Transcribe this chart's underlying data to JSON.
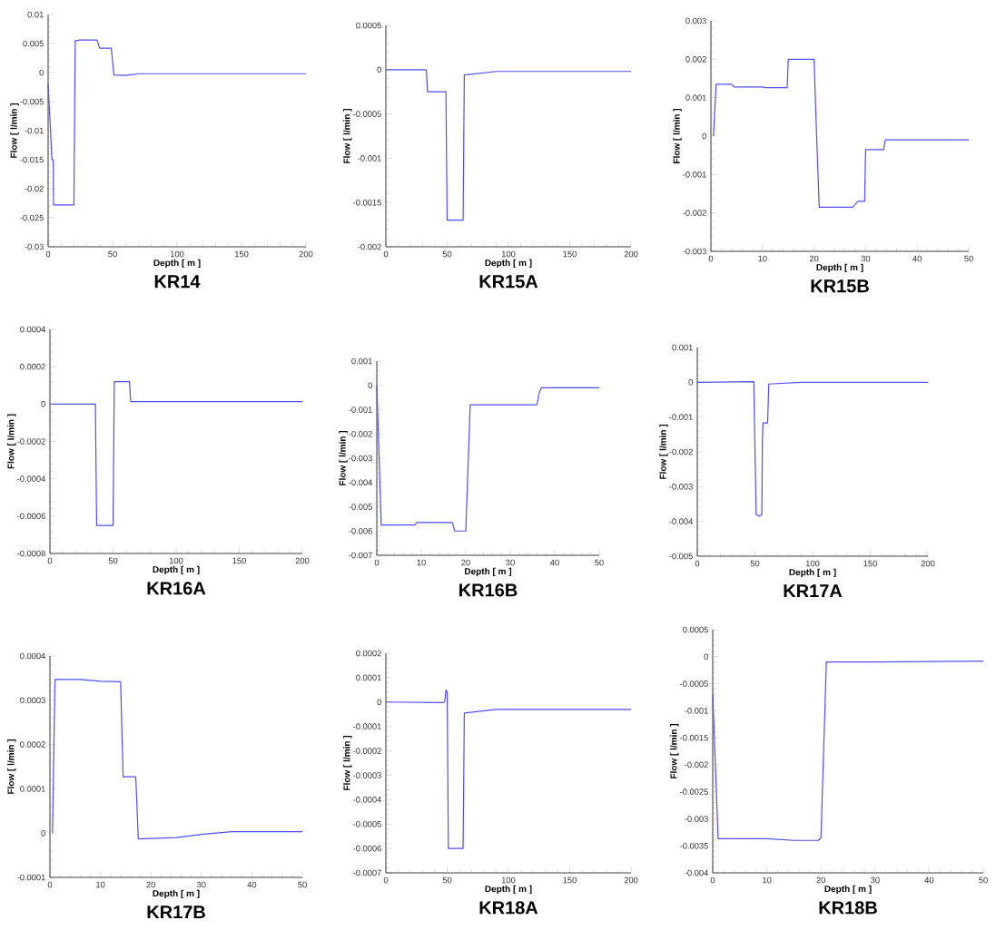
{
  "chart_data": [
    {
      "type": "line",
      "title": "KR14",
      "xlabel": "Depth [ m ]",
      "ylabel": "Flow [ l/min ]",
      "color": "#4f4ff5",
      "xlim": [
        0,
        200
      ],
      "ylim": [
        -0.03,
        0.01
      ],
      "xticks": [
        0,
        50,
        100,
        150,
        200
      ],
      "yticks": [
        -0.03,
        -0.025,
        -0.02,
        -0.015,
        -0.01,
        -0.005,
        0,
        0.005,
        0.01
      ],
      "x": [
        0,
        3,
        4,
        4.2,
        20,
        21,
        25,
        38,
        40,
        49,
        51,
        60,
        67,
        69,
        200
      ],
      "values": [
        -0.002,
        -0.015,
        -0.015,
        -0.0228,
        -0.0228,
        0.0055,
        0.0056,
        0.0056,
        0.0042,
        0.0042,
        -0.0004,
        -0.0005,
        -0.0003,
        -0.0002,
        -0.0002
      ]
    },
    {
      "type": "line",
      "title": "KR15A",
      "xlabel": "Depth [ m ]",
      "ylabel": "Flow [ l/min ]",
      "color": "#4f4ff5",
      "xlim": [
        0,
        200
      ],
      "ylim": [
        -0.002,
        0.0005
      ],
      "xticks": [
        0,
        50,
        100,
        150,
        200
      ],
      "yticks": [
        -0.002,
        -0.0015,
        -0.001,
        -0.0005,
        0,
        0.0005
      ],
      "x": [
        0,
        33,
        34,
        49,
        50,
        63,
        64,
        90,
        200
      ],
      "values": [
        0,
        0,
        -0.00025,
        -0.00025,
        -0.0017,
        -0.0017,
        -6e-05,
        -2e-05,
        -2e-05
      ]
    },
    {
      "type": "line",
      "title": "KR15B",
      "xlabel": "Depth [ m ]",
      "ylabel": "Flow [ l/min ]",
      "color": "#4f4ff5",
      "xlim": [
        0,
        50
      ],
      "ylim": [
        -0.003,
        0.003
      ],
      "xticks": [
        0,
        10,
        20,
        30,
        40,
        50
      ],
      "yticks": [
        -0.003,
        -0.002,
        -0.001,
        0,
        0.001,
        0.002,
        0.003
      ],
      "x": [
        0.5,
        1,
        4,
        4.5,
        10,
        10.5,
        14.8,
        15,
        20,
        20.5,
        21,
        27.5,
        28.5,
        29.8,
        30,
        33.5,
        33.8,
        50
      ],
      "values": [
        0,
        0.00135,
        0.00135,
        0.00128,
        0.00128,
        0.00126,
        0.00126,
        0.002,
        0.002,
        0,
        -0.00185,
        -0.00185,
        -0.0017,
        -0.0017,
        -0.00035,
        -0.00035,
        -0.0001,
        -0.0001
      ]
    },
    {
      "type": "line",
      "title": "KR16A",
      "xlabel": "Depth [ m ]",
      "ylabel": "Flow [ l/min ]",
      "color": "#4f4ff5",
      "xlim": [
        0,
        200
      ],
      "ylim": [
        -0.0008,
        0.0004
      ],
      "xticks": [
        0,
        50,
        100,
        150,
        200
      ],
      "yticks": [
        -0.0008,
        -0.0006,
        -0.0004,
        -0.0002,
        0,
        0.0002,
        0.0004
      ],
      "x": [
        0,
        36,
        37,
        50,
        51,
        63,
        64,
        200
      ],
      "values": [
        0,
        0,
        -0.00065,
        -0.00065,
        0.00012,
        0.00012,
        1.3e-05,
        1.3e-05
      ]
    },
    {
      "type": "line",
      "title": "KR16B",
      "xlabel": "Depth [ m ]",
      "ylabel": "Flow [ l/min ]",
      "color": "#4f4ff5",
      "xlim": [
        0,
        50
      ],
      "ylim": [
        -0.007,
        0.001
      ],
      "xticks": [
        0,
        10,
        20,
        30,
        40,
        50
      ],
      "yticks": [
        -0.007,
        -0.006,
        -0.005,
        -0.004,
        -0.003,
        -0.002,
        -0.001,
        0,
        0.001
      ],
      "x": [
        0,
        1,
        8.5,
        9,
        17,
        17.5,
        20,
        21,
        36,
        36.5,
        37,
        50
      ],
      "values": [
        0,
        -0.00575,
        -0.00575,
        -0.00565,
        -0.00565,
        -0.006,
        -0.006,
        -0.0008,
        -0.0008,
        -0.0003,
        -0.0001,
        -0.0001
      ]
    },
    {
      "type": "line",
      "title": "KR17A",
      "xlabel": "Depth [ m ]",
      "ylabel": "Flow [ l/min ]",
      "color": "#4f4ff5",
      "xlim": [
        0,
        200
      ],
      "ylim": [
        -0.005,
        0.001
      ],
      "xticks": [
        0,
        50,
        100,
        150,
        200
      ],
      "yticks": [
        -0.005,
        -0.004,
        -0.003,
        -0.002,
        -0.001,
        0,
        0.001
      ],
      "x": [
        0,
        49,
        51,
        54,
        56,
        56.5,
        57,
        61,
        62,
        90,
        200
      ],
      "values": [
        0,
        2e-05,
        -0.0038,
        -0.00385,
        -0.0038,
        -0.0016,
        -0.00117,
        -0.00117,
        -5e-05,
        0,
        0
      ]
    },
    {
      "type": "line",
      "title": "KR17B",
      "xlabel": "Depth [ m ]",
      "ylabel": "Flow [ l/min ]",
      "color": "#4f4ff5",
      "xlim": [
        0,
        50
      ],
      "ylim": [
        -0.0001,
        0.0004
      ],
      "xticks": [
        0,
        10,
        20,
        30,
        40,
        50
      ],
      "yticks": [
        -0.0001,
        0,
        0.0001,
        0.0002,
        0.0003,
        0.0004
      ],
      "x": [
        0.5,
        1,
        6,
        10,
        14,
        14.5,
        17,
        17.5,
        25,
        30,
        36,
        50
      ],
      "values": [
        0,
        0.000347,
        0.000347,
        0.000343,
        0.000342,
        0.000127,
        0.000127,
        -1.3e-05,
        -1e-05,
        -3e-06,
        3e-06,
        3e-06
      ]
    },
    {
      "type": "line",
      "title": "KR18A",
      "xlabel": "Depth [ m ]",
      "ylabel": "Flow [ l/min ]",
      "color": "#4f4ff5",
      "xlim": [
        0,
        200
      ],
      "ylim": [
        -0.0007,
        0.0002
      ],
      "xticks": [
        0,
        50,
        100,
        150,
        200
      ],
      "yticks": [
        -0.0007,
        -0.0006,
        -0.0005,
        -0.0004,
        -0.0003,
        -0.0002,
        -0.0001,
        0,
        0.0001,
        0.0002
      ],
      "x": [
        0,
        46,
        48,
        49,
        50,
        51,
        63,
        64,
        90,
        200
      ],
      "values": [
        0,
        -2e-06,
        0,
        5e-05,
        4e-05,
        -0.0006,
        -0.0006,
        -4.5e-05,
        -3e-05,
        -3e-05
      ]
    },
    {
      "type": "line",
      "title": "KR18B",
      "xlabel": "Depth [ m ]",
      "ylabel": "Flow [ l/min ]",
      "color": "#4f4ff5",
      "xlim": [
        0,
        50
      ],
      "ylim": [
        -0.004,
        0.0005
      ],
      "xticks": [
        0,
        10,
        20,
        30,
        40,
        50
      ],
      "yticks": [
        -0.004,
        -0.0035,
        -0.003,
        -0.0025,
        -0.002,
        -0.0015,
        -0.001,
        -0.0005,
        0,
        0.0005
      ],
      "x": [
        0,
        1,
        10,
        15,
        19.5,
        20,
        21,
        30,
        50
      ],
      "values": [
        -0.0007,
        -0.00337,
        -0.00337,
        -0.0034,
        -0.0034,
        -0.00335,
        -0.0001,
        -0.0001,
        -8e-05
      ]
    }
  ]
}
